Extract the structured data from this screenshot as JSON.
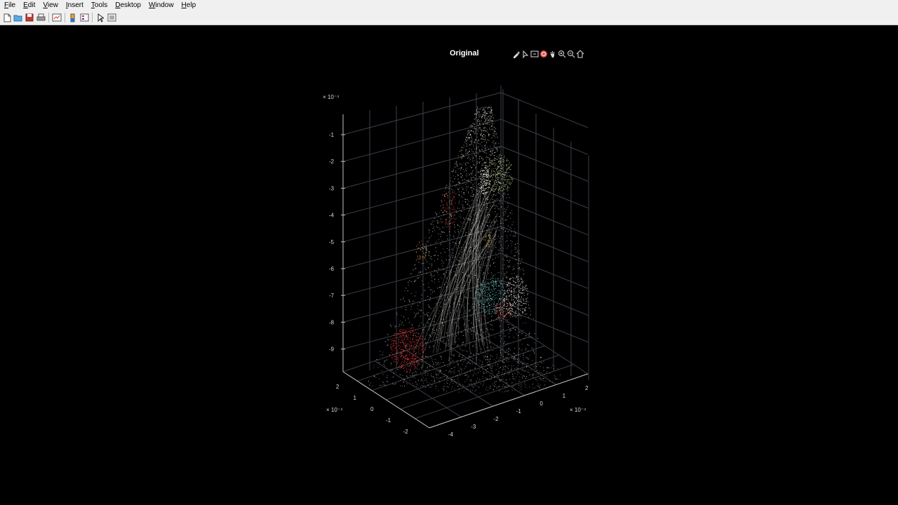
{
  "menubar": {
    "items": [
      {
        "label": "File",
        "mnemonic": "F",
        "rest": "ile"
      },
      {
        "label": "Edit",
        "mnemonic": "E",
        "rest": "dit"
      },
      {
        "label": "View",
        "mnemonic": "V",
        "rest": "iew"
      },
      {
        "label": "Insert",
        "mnemonic": "I",
        "rest": "nsert"
      },
      {
        "label": "Tools",
        "mnemonic": "T",
        "rest": "ools"
      },
      {
        "label": "Desktop",
        "mnemonic": "D",
        "rest": "esktop"
      },
      {
        "label": "Window",
        "mnemonic": "W",
        "rest": "indow"
      },
      {
        "label": "Help",
        "mnemonic": "H",
        "rest": "elp"
      }
    ]
  },
  "toolbar": {
    "icons": [
      "new-figure-icon",
      "open-file-icon",
      "save-icon",
      "print-icon",
      "link-plot-icon",
      "colorbar-icon",
      "legend-icon",
      "edit-plot-icon",
      "property-inspector-icon"
    ]
  },
  "axes": {
    "title": "Original",
    "toolbar_icons": [
      "brush-icon",
      "data-tips-icon",
      "export-icon",
      "rotate-icon",
      "pan-icon",
      "zoom-in-icon",
      "zoom-out-icon",
      "home-icon"
    ],
    "z_ticks": [
      "-1",
      "-2",
      "-3",
      "-4",
      "-5",
      "-6",
      "-7",
      "-8",
      "-9"
    ],
    "z_exponent": "× 10⁻⁴",
    "y_ticks": [
      "2",
      "1",
      "0",
      "-1",
      "-2"
    ],
    "y_exponent": "× 10⁻⁴",
    "x_ticks": [
      "-4",
      "-3",
      "-2",
      "-1",
      "0",
      "1",
      "2"
    ],
    "x_exponent": "× 10⁻⁴",
    "view": "3d-rotated",
    "grid": true
  },
  "chart_data": {
    "type": "scatter",
    "title": "Original",
    "xlabel": "",
    "ylabel": "",
    "zlabel": "",
    "x_ticks": [
      -4,
      -3,
      -2,
      -1,
      0,
      1,
      2
    ],
    "y_ticks": [
      2,
      1,
      0,
      -1,
      -2
    ],
    "z_ticks": [
      -1,
      -2,
      -3,
      -4,
      -5,
      -6,
      -7,
      -8,
      -9
    ],
    "scale_exponent": -4,
    "grid": true,
    "colors": {
      "background": "#000000",
      "white_cloud": "#d8d8d0",
      "red": "#e02828",
      "cyan": "#60d0d0",
      "lime": "#c8e090",
      "orange": "#e89040",
      "salmon": "#e07060"
    }
  }
}
